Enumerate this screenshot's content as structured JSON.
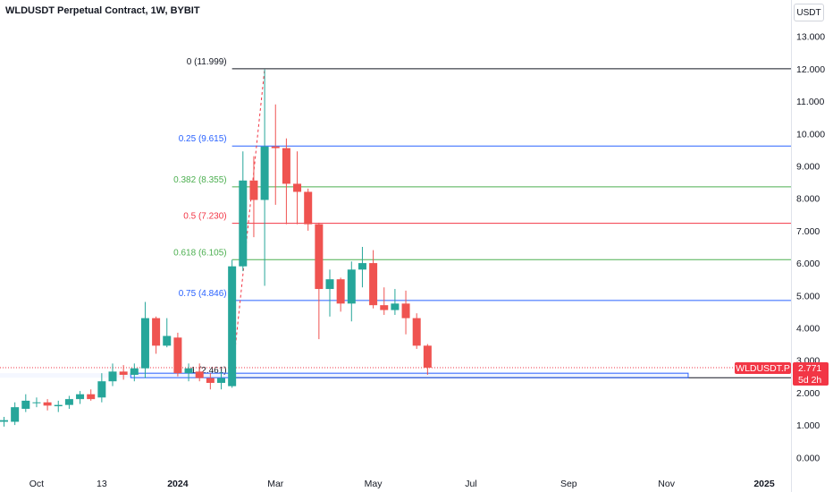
{
  "header": {
    "title": "WLDUSDT Perpetual Contract, 1W, BYBIT",
    "currency": "USDT"
  },
  "price_label": {
    "symbol": "WLDUSDT.P",
    "price": "2.771",
    "countdown": "5d 2h",
    "color": "#f23645"
  },
  "colors": {
    "up": "#26a69a",
    "down": "#ef5350",
    "box": "#2962ff"
  },
  "chart_data": {
    "type": "candlestick",
    "title": "WLDUSDT Perpetual Contract, 1W, BYBIT",
    "ylim": [
      -0.35,
      13.45
    ],
    "y_ticks": [
      "0.000",
      "1.000",
      "2.000",
      "3.000",
      "4.000",
      "5.000",
      "6.000",
      "7.000",
      "8.000",
      "9.000",
      "10.000",
      "11.000",
      "12.000",
      "13.000"
    ],
    "x_ticks": [
      {
        "label": "Oct",
        "week": 3
      },
      {
        "label": "13",
        "week": 9
      },
      {
        "label": "2024",
        "week": 16
      },
      {
        "label": "Mar",
        "week": 25
      },
      {
        "label": "May",
        "week": 34
      },
      {
        "label": "Jul",
        "week": 43
      },
      {
        "label": "Sep",
        "week": 52
      },
      {
        "label": "Nov",
        "week": 61
      },
      {
        "label": "2025",
        "week": 70
      }
    ],
    "candles": [
      {
        "w": 0,
        "o": 1.1,
        "h": 1.25,
        "l": 0.95,
        "c": 1.15
      },
      {
        "w": 1,
        "o": 1.1,
        "h": 1.7,
        "l": 1.0,
        "c": 1.55
      },
      {
        "w": 2,
        "o": 1.5,
        "h": 1.95,
        "l": 1.4,
        "c": 1.75
      },
      {
        "w": 3,
        "o": 1.7,
        "h": 1.85,
        "l": 1.55,
        "c": 1.7
      },
      {
        "w": 4,
        "o": 1.7,
        "h": 1.8,
        "l": 1.45,
        "c": 1.6
      },
      {
        "w": 5,
        "o": 1.58,
        "h": 1.75,
        "l": 1.4,
        "c": 1.62
      },
      {
        "w": 6,
        "o": 1.62,
        "h": 1.9,
        "l": 1.5,
        "c": 1.8
      },
      {
        "w": 7,
        "o": 1.8,
        "h": 2.05,
        "l": 1.65,
        "c": 1.95
      },
      {
        "w": 8,
        "o": 1.95,
        "h": 2.1,
        "l": 1.75,
        "c": 1.8
      },
      {
        "w": 9,
        "o": 1.85,
        "h": 2.6,
        "l": 1.7,
        "c": 2.35
      },
      {
        "w": 10,
        "o": 2.35,
        "h": 2.9,
        "l": 2.2,
        "c": 2.65
      },
      {
        "w": 11,
        "o": 2.65,
        "h": 2.85,
        "l": 2.4,
        "c": 2.55
      },
      {
        "w": 12,
        "o": 2.55,
        "h": 2.9,
        "l": 2.35,
        "c": 2.75
      },
      {
        "w": 13,
        "o": 2.75,
        "h": 4.8,
        "l": 2.45,
        "c": 4.3
      },
      {
        "w": 14,
        "o": 4.3,
        "h": 4.35,
        "l": 3.2,
        "c": 3.45
      },
      {
        "w": 15,
        "o": 3.45,
        "h": 4.3,
        "l": 3.4,
        "c": 3.75
      },
      {
        "w": 16,
        "o": 3.7,
        "h": 3.85,
        "l": 2.5,
        "c": 2.6
      },
      {
        "w": 17,
        "o": 2.6,
        "h": 2.9,
        "l": 2.35,
        "c": 2.75
      },
      {
        "w": 18,
        "o": 2.65,
        "h": 2.9,
        "l": 2.35,
        "c": 2.45
      },
      {
        "w": 19,
        "o": 2.45,
        "h": 2.6,
        "l": 2.1,
        "c": 2.3
      },
      {
        "w": 20,
        "o": 2.3,
        "h": 2.65,
        "l": 2.1,
        "c": 2.45
      },
      {
        "w": 21,
        "o": 2.2,
        "h": 6.1,
        "l": 2.15,
        "c": 5.9
      },
      {
        "w": 22,
        "o": 5.9,
        "h": 9.45,
        "l": 5.75,
        "c": 8.55
      },
      {
        "w": 23,
        "o": 8.55,
        "h": 9.3,
        "l": 6.8,
        "c": 7.95
      },
      {
        "w": 24,
        "o": 7.95,
        "h": 11.98,
        "l": 5.3,
        "c": 9.6
      },
      {
        "w": 25,
        "o": 9.6,
        "h": 10.9,
        "l": 7.8,
        "c": 9.55
      },
      {
        "w": 26,
        "o": 9.55,
        "h": 9.85,
        "l": 7.2,
        "c": 8.45
      },
      {
        "w": 27,
        "o": 8.45,
        "h": 9.45,
        "l": 7.2,
        "c": 8.2
      },
      {
        "w": 28,
        "o": 8.2,
        "h": 8.3,
        "l": 7.0,
        "c": 7.2
      },
      {
        "w": 29,
        "o": 7.2,
        "h": 7.25,
        "l": 3.65,
        "c": 5.2
      },
      {
        "w": 30,
        "o": 5.2,
        "h": 5.8,
        "l": 4.35,
        "c": 5.5
      },
      {
        "w": 31,
        "o": 5.5,
        "h": 5.55,
        "l": 4.5,
        "c": 4.75
      },
      {
        "w": 32,
        "o": 4.75,
        "h": 6.05,
        "l": 4.2,
        "c": 5.8
      },
      {
        "w": 33,
        "o": 5.8,
        "h": 6.5,
        "l": 5.25,
        "c": 6.0
      },
      {
        "w": 34,
        "o": 6.0,
        "h": 6.4,
        "l": 4.6,
        "c": 4.7
      },
      {
        "w": 35,
        "o": 4.7,
        "h": 5.25,
        "l": 4.4,
        "c": 4.55
      },
      {
        "w": 36,
        "o": 4.55,
        "h": 5.2,
        "l": 4.4,
        "c": 4.75
      },
      {
        "w": 37,
        "o": 4.75,
        "h": 5.15,
        "l": 3.8,
        "c": 4.3
      },
      {
        "w": 38,
        "o": 4.3,
        "h": 4.45,
        "l": 3.35,
        "c": 3.45
      },
      {
        "w": 39,
        "o": 3.45,
        "h": 3.5,
        "l": 2.55,
        "c": 2.77
      }
    ],
    "fib_levels": [
      {
        "label": "0 (11.999)",
        "value": 11.999,
        "color": "#131722"
      },
      {
        "label": "0.25 (9.615)",
        "value": 9.615,
        "color": "#2962ff"
      },
      {
        "label": "0.382 (8.355)",
        "value": 8.355,
        "color": "#4caf50"
      },
      {
        "label": "0.5 (7.230)",
        "value": 7.23,
        "color": "#f23645"
      },
      {
        "label": "0.618 (6.105)",
        "value": 6.105,
        "color": "#4caf50"
      },
      {
        "label": "0.75 (4.846)",
        "value": 4.846,
        "color": "#2962ff"
      },
      {
        "label": "1 (2.461)",
        "value": 2.461,
        "color": "#131722"
      }
    ],
    "fib_trend": {
      "from_week": 21,
      "from_value": 2.461,
      "to_week": 24,
      "to_value": 11.999
    },
    "box": {
      "from_week": 12,
      "to_week": 63,
      "low": 2.461,
      "high": 2.6
    },
    "current_price": 2.771
  }
}
